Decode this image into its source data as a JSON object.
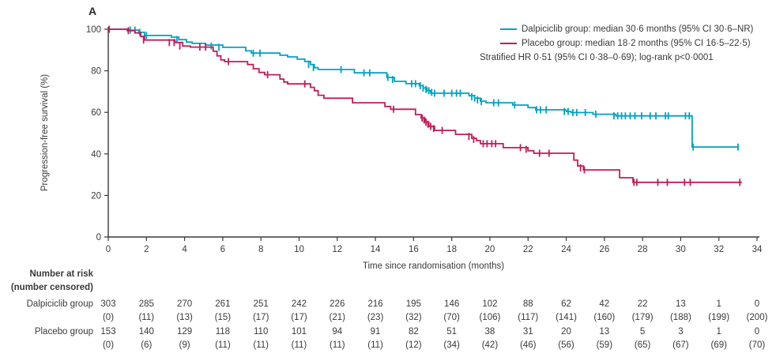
{
  "panel_label": "A",
  "chart_data": {
    "type": "line",
    "subtype": "kaplan-meier-step",
    "title": "",
    "xlabel": "Time since randomisation (months)",
    "ylabel": "Progression-free survival (%)",
    "xlim": [
      0,
      34
    ],
    "ylim": [
      0,
      100
    ],
    "xticks": [
      0,
      2,
      4,
      6,
      8,
      10,
      12,
      14,
      16,
      18,
      20,
      22,
      24,
      26,
      28,
      30,
      32,
      34
    ],
    "yticks": [
      0,
      20,
      40,
      60,
      80,
      100
    ],
    "grid": false,
    "legend_position": "top-right",
    "annotation": "Stratified HR 0·51 (95% CI 0·38–0·69); log-rank p<0·0001",
    "axis_color": "#3a3a3a",
    "series": [
      {
        "name": "Dalpiciclib group",
        "legend_label": "Dalpiciclib group: median 30·6 months (95% CI 30·6–NR)",
        "color": "#00a2c4",
        "end_time": 33.05,
        "steps": [
          [
            0,
            100
          ],
          [
            1.1,
            99.6
          ],
          [
            1.6,
            98.5
          ],
          [
            1.9,
            97.0
          ],
          [
            3.3,
            96.2
          ],
          [
            3.7,
            95.0
          ],
          [
            4.1,
            93.8
          ],
          [
            4.4,
            93.2
          ],
          [
            5.1,
            92.4
          ],
          [
            6.0,
            91.3
          ],
          [
            7.2,
            89.6
          ],
          [
            7.5,
            88.5
          ],
          [
            9.0,
            87.5
          ],
          [
            9.4,
            86.7
          ],
          [
            9.9,
            85.6
          ],
          [
            10.3,
            84.5
          ],
          [
            10.6,
            83.0
          ],
          [
            10.8,
            81.5
          ],
          [
            11.0,
            80.6
          ],
          [
            12.9,
            79.0
          ],
          [
            14.6,
            76.8
          ],
          [
            15.0,
            74.9
          ],
          [
            15.6,
            73.8
          ],
          [
            16.3,
            72.8
          ],
          [
            16.5,
            71.7
          ],
          [
            16.7,
            70.4
          ],
          [
            16.9,
            69.2
          ],
          [
            18.9,
            68.0
          ],
          [
            19.2,
            66.8
          ],
          [
            19.5,
            65.4
          ],
          [
            19.8,
            64.6
          ],
          [
            21.2,
            63.5
          ],
          [
            22.0,
            62.3
          ],
          [
            22.4,
            61.2
          ],
          [
            24.0,
            60.4
          ],
          [
            24.25,
            59.9
          ],
          [
            25.4,
            59.1
          ],
          [
            26.6,
            58.3
          ],
          [
            30.6,
            43.3
          ]
        ],
        "censors": [
          [
            1.15,
            99.6
          ],
          [
            1.4,
            99.6
          ],
          [
            1.65,
            98.5
          ],
          [
            2.0,
            97.0
          ],
          [
            3.6,
            95.0
          ],
          [
            5.4,
            91.9
          ],
          [
            5.8,
            91.3
          ],
          [
            7.6,
            88.5
          ],
          [
            7.95,
            88.5
          ],
          [
            10.5,
            83.0
          ],
          [
            10.75,
            81.5
          ],
          [
            12.2,
            80.6
          ],
          [
            13.4,
            79.0
          ],
          [
            13.7,
            79.0
          ],
          [
            14.65,
            76.8
          ],
          [
            14.9,
            75.8
          ],
          [
            15.9,
            73.8
          ],
          [
            16.1,
            73.8
          ],
          [
            16.35,
            72.8
          ],
          [
            16.5,
            71.7
          ],
          [
            16.65,
            71.0
          ],
          [
            16.8,
            70.4
          ],
          [
            16.95,
            69.6
          ],
          [
            17.1,
            69.2
          ],
          [
            17.6,
            69.2
          ],
          [
            18.0,
            69.2
          ],
          [
            18.25,
            69.2
          ],
          [
            18.45,
            69.2
          ],
          [
            19.05,
            67.5
          ],
          [
            19.2,
            66.8
          ],
          [
            19.35,
            66.0
          ],
          [
            19.55,
            65.2
          ],
          [
            20.2,
            64.6
          ],
          [
            20.45,
            64.6
          ],
          [
            21.3,
            63.5
          ],
          [
            22.45,
            61.2
          ],
          [
            22.65,
            61.2
          ],
          [
            22.95,
            61.2
          ],
          [
            23.9,
            60.4
          ],
          [
            24.1,
            60.4
          ],
          [
            24.35,
            59.9
          ],
          [
            24.55,
            59.9
          ],
          [
            25.0,
            59.9
          ],
          [
            25.55,
            59.1
          ],
          [
            26.5,
            58.3
          ],
          [
            26.7,
            58.3
          ],
          [
            26.9,
            58.3
          ],
          [
            27.1,
            58.3
          ],
          [
            27.35,
            58.3
          ],
          [
            27.6,
            58.3
          ],
          [
            27.95,
            58.3
          ],
          [
            28.4,
            58.3
          ],
          [
            28.7,
            58.3
          ],
          [
            29.2,
            58.3
          ],
          [
            29.35,
            58.3
          ],
          [
            30.25,
            58.3
          ],
          [
            30.45,
            58.3
          ],
          [
            30.65,
            43.3
          ],
          [
            33.0,
            43.3
          ]
        ]
      },
      {
        "name": "Placebo group",
        "legend_label": "Placebo group: median 18·2 months (95% CI 16·5–22·5)",
        "color": "#c01d5b",
        "end_time": 33.2,
        "steps": [
          [
            0,
            100
          ],
          [
            1.0,
            99.3
          ],
          [
            1.4,
            98.2
          ],
          [
            1.7,
            96.5
          ],
          [
            1.9,
            94.8
          ],
          [
            3.5,
            93.6
          ],
          [
            3.9,
            91.9
          ],
          [
            4.3,
            91.4
          ],
          [
            5.5,
            89.4
          ],
          [
            5.7,
            87.2
          ],
          [
            5.9,
            85.2
          ],
          [
            6.1,
            84.4
          ],
          [
            7.3,
            83.0
          ],
          [
            7.6,
            81.0
          ],
          [
            7.9,
            79.2
          ],
          [
            8.2,
            78.1
          ],
          [
            9.0,
            76.0
          ],
          [
            9.2,
            74.6
          ],
          [
            9.4,
            73.7
          ],
          [
            10.6,
            72.0
          ],
          [
            10.8,
            70.4
          ],
          [
            11.0,
            68.2
          ],
          [
            11.3,
            66.8
          ],
          [
            12.8,
            64.6
          ],
          [
            14.5,
            62.8
          ],
          [
            14.8,
            61.5
          ],
          [
            16.1,
            58.9
          ],
          [
            16.4,
            57.2
          ],
          [
            16.6,
            55.3
          ],
          [
            16.8,
            53.2
          ],
          [
            17.1,
            51.3
          ],
          [
            18.2,
            49.4
          ],
          [
            19.05,
            47.5
          ],
          [
            19.3,
            46.4
          ],
          [
            19.5,
            44.9
          ],
          [
            20.7,
            43.0
          ],
          [
            22.0,
            41.5
          ],
          [
            22.3,
            40.3
          ],
          [
            24.4,
            37.0
          ],
          [
            24.6,
            34.2
          ],
          [
            24.9,
            32.3
          ],
          [
            26.8,
            28.5
          ],
          [
            27.5,
            26.3
          ]
        ],
        "censors": [
          [
            0.05,
            100
          ],
          [
            1.05,
            99.3
          ],
          [
            1.85,
            94.8
          ],
          [
            3.2,
            93.6
          ],
          [
            3.45,
            93.6
          ],
          [
            3.75,
            91.9
          ],
          [
            4.8,
            91.4
          ],
          [
            5.1,
            91.4
          ],
          [
            6.3,
            84.4
          ],
          [
            8.35,
            78.1
          ],
          [
            10.3,
            73.7
          ],
          [
            14.95,
            61.5
          ],
          [
            16.45,
            57.2
          ],
          [
            16.55,
            56.3
          ],
          [
            16.65,
            55.3
          ],
          [
            16.75,
            54.3
          ],
          [
            16.9,
            53.2
          ],
          [
            17.05,
            52.2
          ],
          [
            17.5,
            51.3
          ],
          [
            18.9,
            48.4
          ],
          [
            19.15,
            47.0
          ],
          [
            19.65,
            44.9
          ],
          [
            19.85,
            44.9
          ],
          [
            20.1,
            44.9
          ],
          [
            20.3,
            44.9
          ],
          [
            21.6,
            43.0
          ],
          [
            21.9,
            42.2
          ],
          [
            22.6,
            40.3
          ],
          [
            23.1,
            40.3
          ],
          [
            24.75,
            33.3
          ],
          [
            24.95,
            32.3
          ],
          [
            27.55,
            26.3
          ],
          [
            27.7,
            26.3
          ],
          [
            28.8,
            26.3
          ],
          [
            29.3,
            26.3
          ],
          [
            30.2,
            26.3
          ],
          [
            30.5,
            26.3
          ],
          [
            33.1,
            26.3
          ]
        ]
      }
    ],
    "risk_table": {
      "header_line1": "Number at risk",
      "header_line2": "(number censored)",
      "times": [
        0,
        2,
        4,
        6,
        8,
        10,
        12,
        14,
        16,
        18,
        20,
        22,
        24,
        26,
        28,
        30,
        32,
        34
      ],
      "rows": [
        {
          "label": "Dalpiciclib group",
          "at_risk": [
            303,
            285,
            270,
            261,
            251,
            242,
            226,
            216,
            195,
            146,
            102,
            88,
            62,
            42,
            22,
            13,
            1,
            0
          ],
          "censored": [
            0,
            11,
            13,
            15,
            17,
            17,
            21,
            23,
            32,
            70,
            106,
            117,
            141,
            160,
            179,
            188,
            199,
            200
          ]
        },
        {
          "label": "Placebo group",
          "at_risk": [
            153,
            140,
            129,
            118,
            110,
            101,
            94,
            91,
            82,
            51,
            38,
            31,
            20,
            13,
            5,
            3,
            1,
            0
          ],
          "censored": [
            0,
            6,
            9,
            11,
            11,
            11,
            11,
            11,
            12,
            34,
            42,
            46,
            56,
            59,
            65,
            67,
            69,
            70
          ]
        }
      ]
    }
  }
}
